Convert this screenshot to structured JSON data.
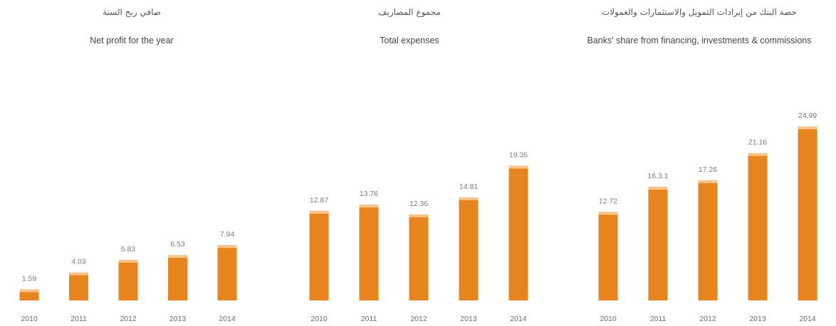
{
  "chart_data": [
    {
      "type": "bar",
      "title": "Net profit for the year",
      "title_ar": "صافي ربح السنة",
      "categories": [
        "2010",
        "2011",
        "2012",
        "2013",
        "2014"
      ],
      "values": [
        1.59,
        4.03,
        5.83,
        6.53,
        7.94
      ],
      "value_labels": [
        "1.59",
        "4.03",
        "5.83",
        "6.53",
        "7.94"
      ],
      "xlabel": "",
      "ylabel": "",
      "ylim": [
        0,
        25
      ],
      "grid": false,
      "bar_color": "#E8841E",
      "bar_top_color": "#F7C48A"
    },
    {
      "type": "bar",
      "title": "Total expenses",
      "title_ar": "مجموع المصاريف",
      "categories": [
        "2010",
        "2011",
        "2012",
        "2013",
        "2014"
      ],
      "values": [
        12.87,
        13.76,
        12.36,
        14.81,
        19.35
      ],
      "value_labels": [
        "12.87",
        "13.76",
        "12.36",
        "14.81",
        "19.35"
      ],
      "xlabel": "",
      "ylabel": "",
      "ylim": [
        0,
        25
      ],
      "grid": false,
      "bar_color": "#E8841E",
      "bar_top_color": "#F7C48A"
    },
    {
      "type": "bar",
      "title": "Banks' share from financing, investments & commissions",
      "title_ar": "حصة البنك من إيرادات التمويل والاستثمارات والعمولات",
      "categories": [
        "2010",
        "2011",
        "2012",
        "2013",
        "2014"
      ],
      "values": [
        12.72,
        16.31,
        17.26,
        21.16,
        24.99
      ],
      "value_labels": [
        "12.72",
        "16.3.1",
        "17.26",
        "21.16",
        "24.99"
      ],
      "xlabel": "",
      "ylabel": "",
      "ylim": [
        0,
        25
      ],
      "grid": false,
      "bar_color": "#E8841E",
      "bar_top_color": "#F7C48A"
    }
  ]
}
